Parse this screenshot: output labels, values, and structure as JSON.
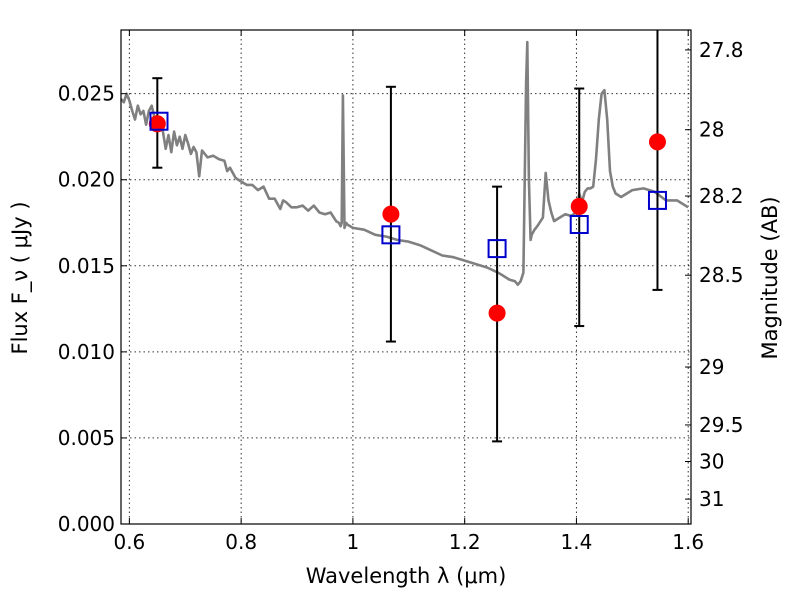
{
  "chart_data": {
    "type": "scatter",
    "xlabel": "Wavelength  λ (μm)",
    "ylabel": "Flux  F_ν  ( μJy )",
    "y2label": "Magnitude (AB)",
    "xlim": [
      0.585,
      1.605
    ],
    "ylim": [
      0.0,
      0.0287
    ],
    "grid": true,
    "x_ticks": [
      0.6,
      0.8,
      1.0,
      1.2,
      1.4,
      1.6
    ],
    "x_tick_labels": [
      "0.6",
      "0.8",
      "1",
      "1.2",
      "1.4",
      "1.6"
    ],
    "y_ticks": [
      0.0,
      0.005,
      0.01,
      0.015,
      0.02,
      0.025
    ],
    "y_tick_labels": [
      "0.000",
      "0.005",
      "0.010",
      "0.015",
      "0.020",
      "0.025"
    ],
    "y2_ticks": [
      27.8,
      28.0,
      28.2,
      28.5,
      29.0,
      29.5,
      30.0,
      31.0
    ],
    "y2_tick_labels": [
      "27.8",
      "28",
      "28.2",
      "28.5",
      "29",
      "29.5",
      "30",
      "31"
    ],
    "series": [
      {
        "type": "line",
        "color": "#808080",
        "x": [
          0.585,
          0.59,
          0.595,
          0.6,
          0.605,
          0.61,
          0.615,
          0.62,
          0.625,
          0.63,
          0.635,
          0.64,
          0.645,
          0.65,
          0.655,
          0.66,
          0.665,
          0.67,
          0.675,
          0.68,
          0.685,
          0.69,
          0.695,
          0.7,
          0.705,
          0.71,
          0.715,
          0.72,
          0.725,
          0.73,
          0.735,
          0.74,
          0.75,
          0.76,
          0.77,
          0.775,
          0.78,
          0.79,
          0.8,
          0.81,
          0.82,
          0.83,
          0.84,
          0.85,
          0.86,
          0.87,
          0.875,
          0.88,
          0.89,
          0.9,
          0.91,
          0.92,
          0.93,
          0.94,
          0.95,
          0.96,
          0.97,
          0.975,
          0.978,
          0.98,
          0.982,
          0.985,
          0.988,
          0.99,
          1.0,
          1.02,
          1.04,
          1.06,
          1.08,
          1.1,
          1.12,
          1.14,
          1.16,
          1.18,
          1.2,
          1.22,
          1.24,
          1.26,
          1.27,
          1.28,
          1.29,
          1.295,
          1.3,
          1.305,
          1.31,
          1.312,
          1.315,
          1.318,
          1.32,
          1.325,
          1.33,
          1.34,
          1.345,
          1.35,
          1.355,
          1.36,
          1.37,
          1.38,
          1.39,
          1.4,
          1.405,
          1.41,
          1.415,
          1.42,
          1.425,
          1.43,
          1.435,
          1.44,
          1.445,
          1.45,
          1.455,
          1.46,
          1.465,
          1.47,
          1.48,
          1.5,
          1.52,
          1.54,
          1.56,
          1.58,
          1.6
        ],
        "y": [
          0.0247,
          0.0245,
          0.025,
          0.0246,
          0.024,
          0.0235,
          0.0243,
          0.0238,
          0.024,
          0.0232,
          0.024,
          0.0243,
          0.0236,
          0.0233,
          0.0235,
          0.0228,
          0.0218,
          0.0226,
          0.0216,
          0.0228,
          0.022,
          0.0225,
          0.0218,
          0.0226,
          0.0221,
          0.0215,
          0.0219,
          0.0216,
          0.0202,
          0.0217,
          0.0215,
          0.0213,
          0.0214,
          0.0212,
          0.0211,
          0.0205,
          0.0207,
          0.0201,
          0.0199,
          0.0197,
          0.0197,
          0.0194,
          0.0196,
          0.0189,
          0.0189,
          0.0183,
          0.0188,
          0.0187,
          0.0184,
          0.0184,
          0.0185,
          0.0182,
          0.0185,
          0.0181,
          0.018,
          0.0181,
          0.0176,
          0.0175,
          0.0173,
          0.0175,
          0.0249,
          0.0172,
          0.0175,
          0.0174,
          0.0172,
          0.0171,
          0.0168,
          0.0167,
          0.0165,
          0.0164,
          0.0162,
          0.0159,
          0.0156,
          0.0155,
          0.0153,
          0.0151,
          0.0149,
          0.0146,
          0.0144,
          0.0142,
          0.0141,
          0.0139,
          0.0141,
          0.0146,
          0.0256,
          0.028,
          0.02,
          0.0165,
          0.0168,
          0.0171,
          0.0173,
          0.0178,
          0.0204,
          0.0188,
          0.0181,
          0.0176,
          0.0178,
          0.018,
          0.0179,
          0.0181,
          0.0192,
          0.0187,
          0.0193,
          0.0195,
          0.0195,
          0.0196,
          0.0212,
          0.0235,
          0.025,
          0.0252,
          0.0235,
          0.0205,
          0.0196,
          0.0192,
          0.019,
          0.0194,
          0.0195,
          0.0193,
          0.0188,
          0.0188,
          0.0184
        ],
        "opacity": 1
      },
      {
        "type": "errorbar_points",
        "marker": "circle",
        "color": "#ff0000",
        "x": [
          0.65,
          1.068,
          1.258,
          1.405,
          1.545
        ],
        "y": [
          0.02325,
          0.018,
          0.01225,
          0.01845,
          0.0222
        ],
        "yerr_low": [
          0.0207,
          0.0106,
          0.0048,
          0.0115,
          0.0136
        ],
        "yerr_high": [
          0.0259,
          0.0254,
          0.0196,
          0.0253,
          0.0289
        ]
      },
      {
        "type": "points",
        "marker": "square",
        "color": "#0000cc",
        "x": [
          0.653,
          1.068,
          1.258,
          1.405,
          1.545
        ],
        "y": [
          0.0234,
          0.0168,
          0.016,
          0.0174,
          0.0188
        ]
      }
    ]
  }
}
